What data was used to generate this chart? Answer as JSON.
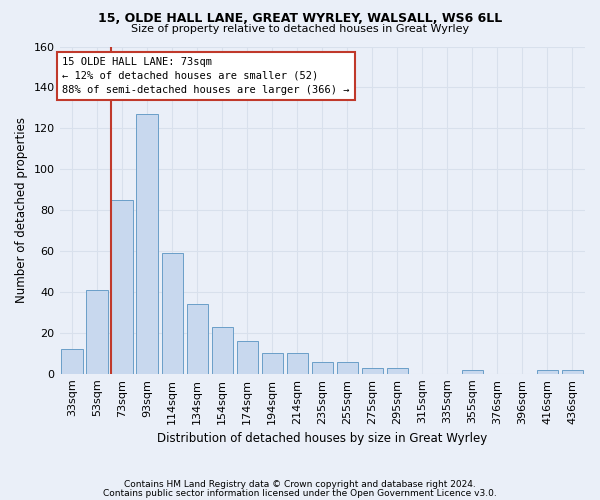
{
  "title1": "15, OLDE HALL LANE, GREAT WYRLEY, WALSALL, WS6 6LL",
  "title2": "Size of property relative to detached houses in Great Wyrley",
  "xlabel": "Distribution of detached houses by size in Great Wyrley",
  "ylabel": "Number of detached properties",
  "categories": [
    "33sqm",
    "53sqm",
    "73sqm",
    "93sqm",
    "114sqm",
    "134sqm",
    "154sqm",
    "174sqm",
    "194sqm",
    "214sqm",
    "235sqm",
    "255sqm",
    "275sqm",
    "295sqm",
    "315sqm",
    "335sqm",
    "355sqm",
    "376sqm",
    "396sqm",
    "416sqm",
    "436sqm"
  ],
  "values": [
    12,
    41,
    85,
    127,
    59,
    34,
    23,
    16,
    10,
    10,
    6,
    6,
    3,
    3,
    0,
    0,
    2,
    0,
    0,
    2,
    2
  ],
  "bar_color": "#c8d8ee",
  "bar_edge_color": "#6a9ec8",
  "highlight_bar_index": 2,
  "highlight_color": "#c0392b",
  "ylim": [
    0,
    160
  ],
  "yticks": [
    0,
    20,
    40,
    60,
    80,
    100,
    120,
    140,
    160
  ],
  "ann_line1": "15 OLDE HALL LANE: 73sqm",
  "ann_line2": "← 12% of detached houses are smaller (52)",
  "ann_line3": "88% of semi-detached houses are larger (366) →",
  "ann_box_facecolor": "#ffffff",
  "ann_box_edgecolor": "#c0392b",
  "footer1": "Contains HM Land Registry data © Crown copyright and database right 2024.",
  "footer2": "Contains public sector information licensed under the Open Government Licence v3.0.",
  "bg_color": "#eaeff8",
  "grid_color": "#d8e0ec"
}
